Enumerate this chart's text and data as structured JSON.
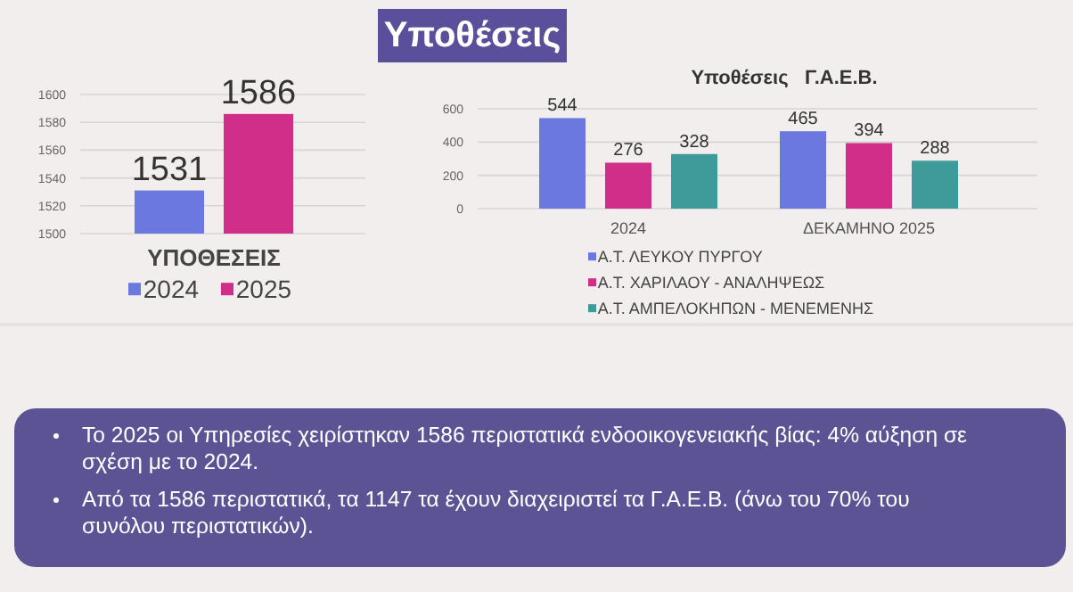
{
  "chart_data": [
    {
      "type": "bar",
      "categories": [
        "ΥΠΟΘΕΣΕΙΣ"
      ],
      "series": [
        {
          "name": "2024",
          "color": "#6b78e0",
          "values": [
            1531
          ]
        },
        {
          "name": "2025",
          "color": "#d02e88",
          "values": [
            1586
          ]
        }
      ],
      "ylim": [
        1500,
        1600
      ],
      "yticks": [
        1500,
        1520,
        1540,
        1560,
        1580,
        1600
      ],
      "grid": "y",
      "legend": "bottom",
      "data_labels": true
    },
    {
      "type": "bar",
      "title": "Υποθέσεις   Γ.Α.Ε.Β.",
      "categories": [
        "2024",
        "ΔΕΚΑΜΗΝΟ 2025"
      ],
      "series": [
        {
          "name": "Α.Τ. ΛΕΥΚΟΥ ΠΥΡΓΟΥ",
          "color": "#6b78e0",
          "values": [
            544,
            465
          ]
        },
        {
          "name": "Α.Τ. ΧΑΡΙΛΑΟΥ - ΑΝΑΛΗΨΕΩΣ",
          "color": "#d02e88",
          "values": [
            276,
            394
          ]
        },
        {
          "name": "Α.Τ. ΑΜΠΕΛΟΚΗΠΩΝ - ΜΕΝΕΜΕΝΗΣ",
          "color": "#3f9a9a",
          "values": [
            328,
            288
          ]
        }
      ],
      "ylim": [
        0,
        600
      ],
      "yticks": [
        0,
        200,
        400,
        600
      ],
      "grid": "y",
      "legend": "bottom",
      "data_labels": true
    },
    {
      "type": "other",
      "title": "Υποθέσεις",
      "annotations": [
        "Το 2025 οι Υπηρεσίες χειρίστηκαν 1586 περιστατικά ενδοοικογενειακής βίας: 4% αύξηση σε σχέση με το 2024.",
        "Από τα 1586 περιστατικά, τα 1147 τα έχουν διαχειριστεί τα Γ.Α.Ε.Β.  (άνω του 70% του συνόλου περιστατικών)."
      ]
    }
  ]
}
